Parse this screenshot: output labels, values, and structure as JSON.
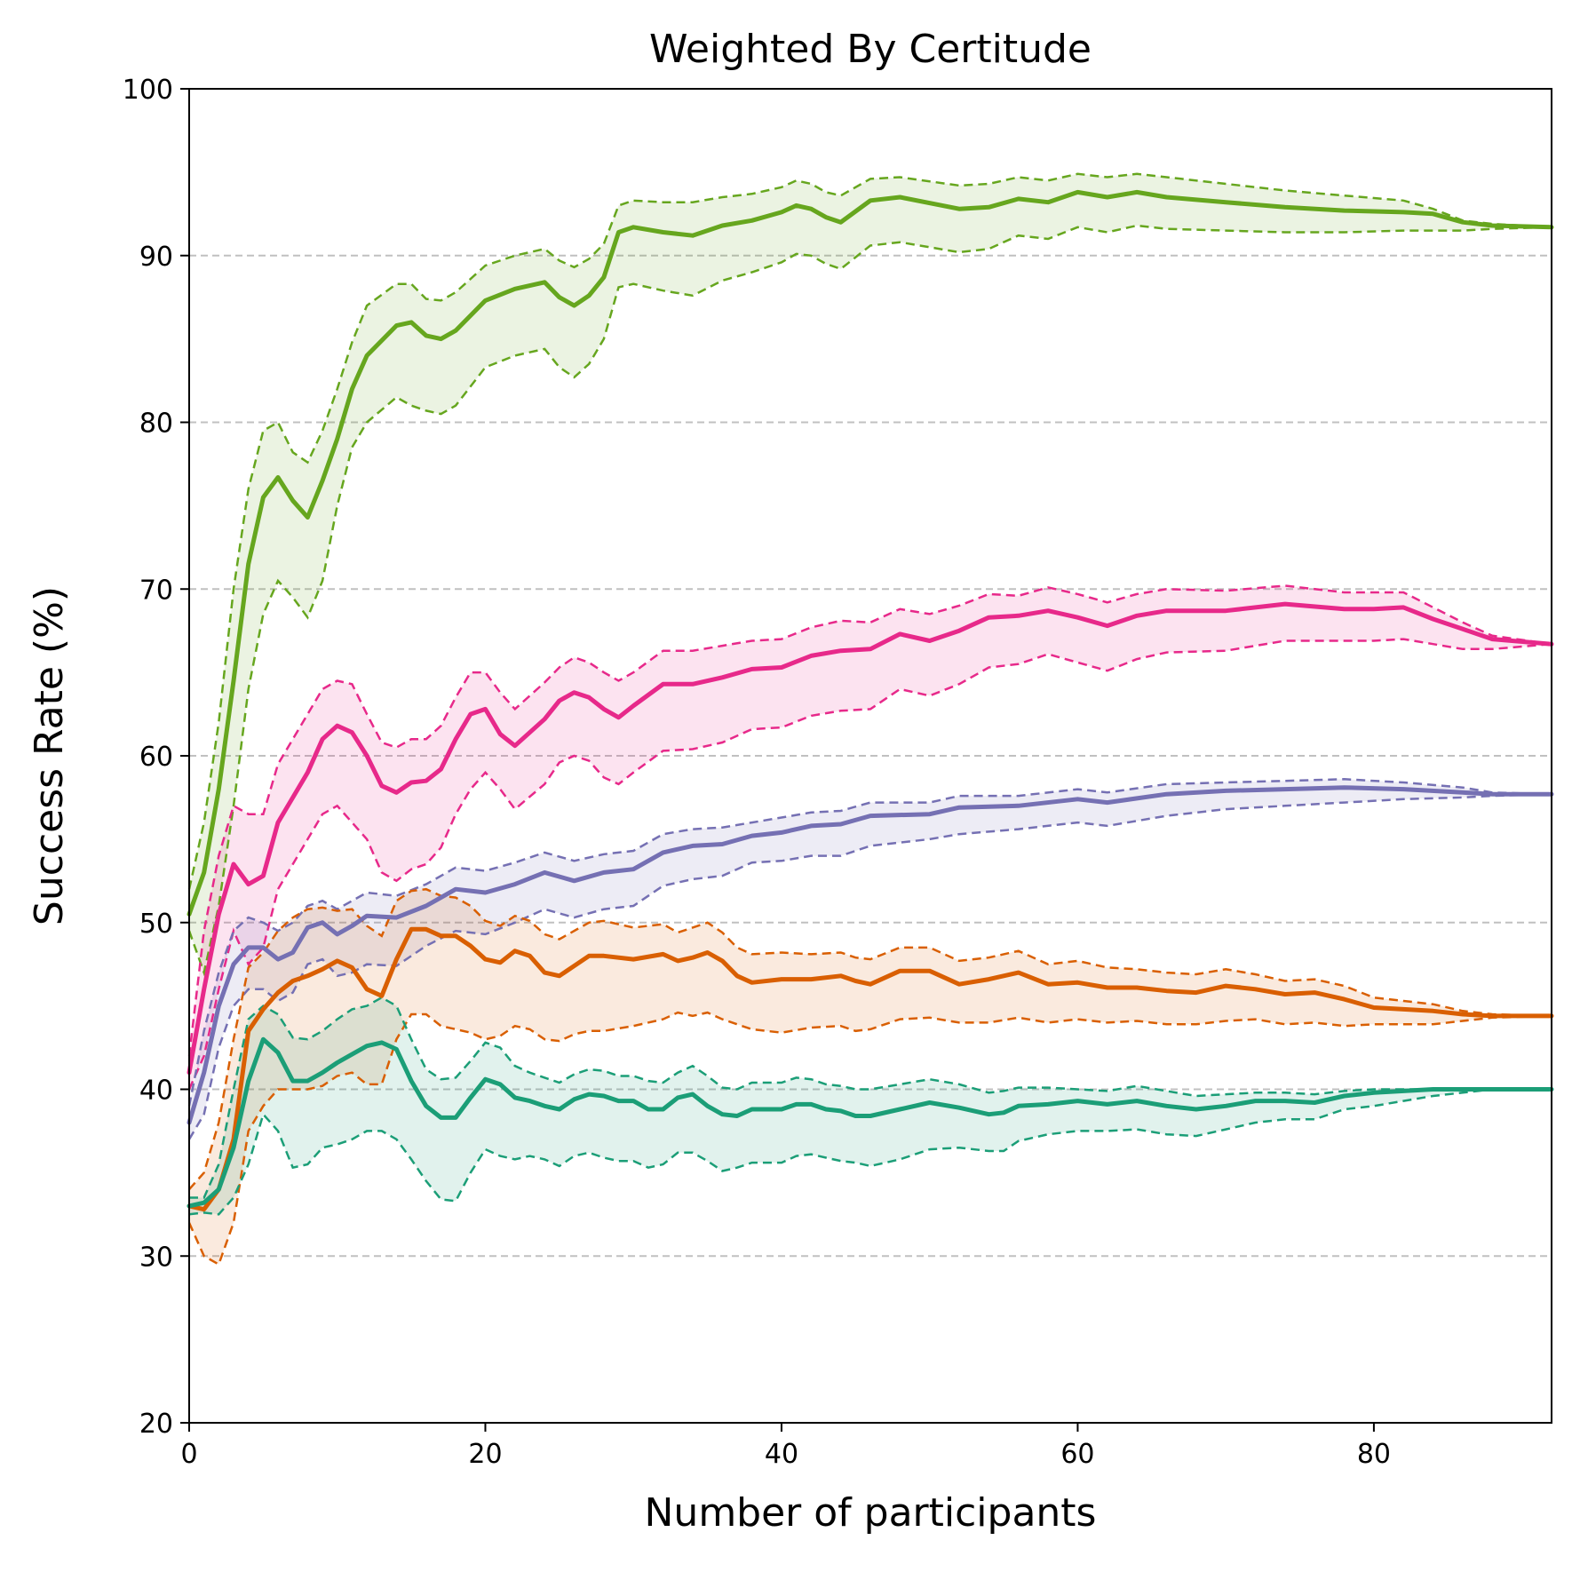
{
  "chart_data": {
    "type": "line",
    "title": "Weighted By Certitude",
    "xlabel": "Number of participants",
    "ylabel": "Success Rate (%)",
    "xlim": [
      0,
      92
    ],
    "ylim": [
      20,
      100
    ],
    "xticks": [
      0,
      20,
      40,
      60,
      80
    ],
    "yticks": [
      20,
      30,
      40,
      50,
      60,
      70,
      80,
      90,
      100
    ],
    "grid": "horizontal-dashed",
    "legend": "none",
    "band_opacity": 0.13,
    "series": [
      {
        "color": "#66a61e",
        "x": [
          0,
          1,
          2,
          3,
          4,
          5,
          6,
          7,
          8,
          9,
          10,
          11,
          12,
          14,
          15,
          16,
          17,
          18,
          20,
          22,
          24,
          25,
          26,
          27,
          28,
          29,
          30,
          32,
          34,
          36,
          38,
          40,
          41,
          42,
          43,
          44,
          46,
          48,
          52,
          54,
          56,
          58,
          60,
          62,
          64,
          66,
          70,
          74,
          78,
          82,
          84,
          86,
          88,
          92
        ],
        "y": [
          50.5,
          53.0,
          58.0,
          64.5,
          71.5,
          75.5,
          76.7,
          75.3,
          74.3,
          76.5,
          79.0,
          82.0,
          84.0,
          85.8,
          86.0,
          85.2,
          85.0,
          85.5,
          87.3,
          88.0,
          88.4,
          87.5,
          87.0,
          87.6,
          88.7,
          91.4,
          91.7,
          91.4,
          91.2,
          91.8,
          92.1,
          92.6,
          93.0,
          92.8,
          92.3,
          92.0,
          93.3,
          93.5,
          92.8,
          92.9,
          93.4,
          93.2,
          93.8,
          93.5,
          93.8,
          93.5,
          93.2,
          92.9,
          92.7,
          92.6,
          92.5,
          92.0,
          91.8,
          91.7
        ],
        "upper": [
          52.0,
          56.0,
          62.0,
          70.0,
          76.0,
          79.5,
          80.0,
          78.2,
          77.6,
          79.5,
          82.0,
          84.8,
          87.0,
          88.3,
          88.3,
          87.4,
          87.3,
          87.8,
          89.4,
          90.0,
          90.4,
          89.7,
          89.3,
          89.8,
          90.7,
          93.0,
          93.3,
          93.2,
          93.2,
          93.5,
          93.7,
          94.1,
          94.5,
          94.3,
          93.8,
          93.6,
          94.6,
          94.7,
          94.2,
          94.3,
          94.7,
          94.5,
          94.9,
          94.7,
          94.9,
          94.7,
          94.3,
          93.9,
          93.6,
          93.3,
          92.8,
          92.1,
          91.9,
          91.7
        ],
        "lower": [
          49.5,
          47.0,
          51.0,
          57.0,
          64.0,
          68.5,
          70.5,
          69.5,
          68.3,
          70.5,
          75.0,
          78.5,
          80.0,
          81.5,
          81.0,
          80.7,
          80.5,
          81.0,
          83.3,
          84.0,
          84.4,
          83.3,
          82.7,
          83.5,
          85.0,
          88.1,
          88.3,
          87.9,
          87.6,
          88.5,
          89.0,
          89.6,
          90.1,
          90.0,
          89.5,
          89.2,
          90.6,
          90.8,
          90.2,
          90.4,
          91.2,
          91.0,
          91.7,
          91.4,
          91.8,
          91.6,
          91.5,
          91.4,
          91.4,
          91.5,
          91.5,
          91.5,
          91.6,
          91.7
        ]
      },
      {
        "color": "#e7298a",
        "x": [
          0,
          1,
          2,
          3,
          4,
          5,
          6,
          8,
          9,
          10,
          11,
          12,
          13,
          14,
          15,
          16,
          17,
          18,
          19,
          20,
          21,
          22,
          24,
          25,
          26,
          27,
          28,
          29,
          30,
          32,
          34,
          36,
          38,
          40,
          42,
          44,
          46,
          48,
          50,
          52,
          54,
          56,
          58,
          60,
          62,
          64,
          66,
          70,
          74,
          78,
          80,
          82,
          84,
          86,
          88,
          92
        ],
        "y": [
          41.0,
          46.0,
          50.5,
          53.5,
          52.3,
          52.8,
          56.0,
          59.0,
          61.0,
          61.8,
          61.4,
          60.0,
          58.2,
          57.8,
          58.4,
          58.5,
          59.2,
          61.0,
          62.5,
          62.8,
          61.3,
          60.6,
          62.2,
          63.3,
          63.8,
          63.5,
          62.8,
          62.3,
          63.0,
          64.3,
          64.3,
          64.7,
          65.2,
          65.3,
          66.0,
          66.3,
          66.4,
          67.3,
          66.9,
          67.5,
          68.3,
          68.4,
          68.7,
          68.3,
          67.8,
          68.4,
          68.7,
          68.7,
          69.1,
          68.8,
          68.8,
          68.9,
          68.2,
          67.6,
          67.0,
          66.7
        ],
        "upper": [
          42.0,
          49.5,
          54.0,
          57.0,
          56.5,
          56.5,
          59.5,
          62.5,
          64.0,
          64.5,
          64.3,
          62.5,
          60.8,
          60.5,
          61.0,
          61.0,
          61.8,
          63.5,
          65.0,
          65.0,
          63.8,
          62.8,
          64.4,
          65.3,
          65.9,
          65.6,
          65.0,
          64.5,
          65.0,
          66.3,
          66.3,
          66.6,
          66.9,
          67.0,
          67.7,
          68.1,
          68.0,
          68.8,
          68.5,
          69.0,
          69.7,
          69.6,
          70.1,
          69.7,
          69.2,
          69.7,
          70.0,
          69.9,
          70.2,
          69.8,
          69.8,
          69.8,
          68.9,
          68.0,
          67.2,
          66.7
        ],
        "lower": [
          40.0,
          42.0,
          46.0,
          49.5,
          47.5,
          48.5,
          52.0,
          55.0,
          56.5,
          57.0,
          56.0,
          55.0,
          53.0,
          52.5,
          53.2,
          53.5,
          54.5,
          56.5,
          58.0,
          59.0,
          58.0,
          56.8,
          58.3,
          59.6,
          60.0,
          59.7,
          58.7,
          58.3,
          59.0,
          60.3,
          60.4,
          60.8,
          61.6,
          61.7,
          62.4,
          62.7,
          62.8,
          64.0,
          63.6,
          64.3,
          65.3,
          65.5,
          66.1,
          65.6,
          65.1,
          65.8,
          66.2,
          66.3,
          66.9,
          66.9,
          66.9,
          67.0,
          66.7,
          66.4,
          66.4,
          66.7
        ]
      },
      {
        "color": "#7570b3",
        "x": [
          0,
          1,
          2,
          3,
          4,
          5,
          6,
          7,
          8,
          9,
          10,
          11,
          12,
          14,
          16,
          18,
          20,
          22,
          24,
          26,
          28,
          30,
          32,
          34,
          36,
          38,
          40,
          42,
          44,
          46,
          50,
          52,
          56,
          60,
          62,
          66,
          70,
          74,
          78,
          82,
          86,
          88,
          92
        ],
        "y": [
          38.0,
          41.0,
          45.0,
          47.5,
          48.5,
          48.5,
          47.8,
          48.2,
          49.7,
          50.0,
          49.3,
          49.8,
          50.4,
          50.3,
          51.0,
          52.0,
          51.8,
          52.3,
          53.0,
          52.5,
          53.0,
          53.2,
          54.2,
          54.6,
          54.7,
          55.2,
          55.4,
          55.8,
          55.9,
          56.4,
          56.5,
          56.9,
          57.0,
          57.4,
          57.2,
          57.7,
          57.9,
          58.0,
          58.1,
          58.0,
          57.8,
          57.7,
          57.7
        ],
        "upper": [
          39.0,
          43.5,
          47.0,
          49.5,
          50.3,
          50.0,
          49.5,
          50.0,
          51.0,
          51.3,
          50.8,
          51.3,
          51.8,
          51.6,
          52.3,
          53.3,
          53.1,
          53.6,
          54.2,
          53.7,
          54.1,
          54.3,
          55.3,
          55.6,
          55.7,
          56.0,
          56.3,
          56.6,
          56.7,
          57.2,
          57.2,
          57.6,
          57.6,
          58.0,
          57.8,
          58.3,
          58.4,
          58.5,
          58.6,
          58.4,
          58.1,
          57.8,
          57.7
        ],
        "lower": [
          37.0,
          38.5,
          42.5,
          45.0,
          46.0,
          46.0,
          45.3,
          45.8,
          47.5,
          47.8,
          46.8,
          47.0,
          47.5,
          47.4,
          48.6,
          49.5,
          49.3,
          50.0,
          50.8,
          50.3,
          50.8,
          51.0,
          52.2,
          52.6,
          52.8,
          53.6,
          53.7,
          54.0,
          54.0,
          54.6,
          55.0,
          55.3,
          55.6,
          56.0,
          55.8,
          56.4,
          56.8,
          57.0,
          57.2,
          57.4,
          57.5,
          57.6,
          57.7
        ]
      },
      {
        "color": "#d95f02",
        "x": [
          0,
          1,
          2,
          3,
          4,
          5,
          6,
          7,
          8,
          9,
          10,
          11,
          12,
          13,
          14,
          15,
          16,
          17,
          18,
          19,
          20,
          21,
          22,
          23,
          24,
          25,
          26,
          27,
          28,
          30,
          32,
          33,
          34,
          35,
          36,
          37,
          38,
          40,
          42,
          44,
          45,
          46,
          48,
          50,
          52,
          54,
          56,
          58,
          60,
          62,
          64,
          66,
          68,
          70,
          72,
          74,
          76,
          78,
          80,
          82,
          84,
          86,
          88,
          92
        ],
        "y": [
          33.0,
          32.8,
          34.0,
          37.0,
          43.5,
          44.8,
          45.8,
          46.5,
          46.8,
          47.2,
          47.7,
          47.3,
          46.0,
          45.6,
          47.8,
          49.6,
          49.6,
          49.2,
          49.2,
          48.6,
          47.8,
          47.6,
          48.3,
          48.0,
          47.0,
          46.8,
          47.4,
          48.0,
          48.0,
          47.8,
          48.1,
          47.7,
          47.9,
          48.2,
          47.7,
          46.8,
          46.4,
          46.6,
          46.6,
          46.8,
          46.5,
          46.3,
          47.1,
          47.1,
          46.3,
          46.6,
          47.0,
          46.3,
          46.4,
          46.1,
          46.1,
          45.9,
          45.8,
          46.2,
          46.0,
          45.7,
          45.8,
          45.4,
          44.9,
          44.8,
          44.7,
          44.5,
          44.4,
          44.4
        ],
        "upper": [
          34.0,
          35.0,
          38.0,
          43.0,
          47.3,
          48.2,
          49.5,
          50.3,
          50.8,
          50.9,
          50.7,
          50.8,
          49.8,
          49.2,
          51.3,
          51.9,
          52.0,
          51.6,
          51.5,
          51.0,
          50.1,
          49.8,
          50.4,
          50.1,
          49.3,
          49.0,
          49.5,
          50.0,
          50.1,
          49.7,
          49.9,
          49.4,
          49.7,
          50.0,
          49.4,
          48.5,
          48.1,
          48.2,
          48.1,
          48.2,
          47.9,
          47.8,
          48.5,
          48.5,
          47.7,
          47.9,
          48.3,
          47.5,
          47.7,
          47.3,
          47.2,
          47.0,
          46.9,
          47.2,
          46.9,
          46.5,
          46.6,
          46.2,
          45.5,
          45.3,
          45.1,
          44.7,
          44.5,
          44.4
        ],
        "lower": [
          32.0,
          30.0,
          29.5,
          32.0,
          37.5,
          39.0,
          40.0,
          40.0,
          40.0,
          40.2,
          40.8,
          41.0,
          40.3,
          40.3,
          43.0,
          44.5,
          44.5,
          43.8,
          43.6,
          43.4,
          43.0,
          43.2,
          43.8,
          43.6,
          43.0,
          42.9,
          43.3,
          43.5,
          43.5,
          43.8,
          44.2,
          44.6,
          44.4,
          44.6,
          44.2,
          43.9,
          43.6,
          43.4,
          43.7,
          43.8,
          43.5,
          43.6,
          44.2,
          44.3,
          44.0,
          44.0,
          44.3,
          44.0,
          44.2,
          44.0,
          44.1,
          43.9,
          43.9,
          44.1,
          44.2,
          43.9,
          44.0,
          43.8,
          43.9,
          43.9,
          43.9,
          44.1,
          44.3,
          44.4
        ]
      },
      {
        "color": "#1b9e77",
        "x": [
          0,
          1,
          2,
          3,
          4,
          5,
          6,
          7,
          8,
          9,
          10,
          11,
          12,
          13,
          14,
          15,
          16,
          17,
          18,
          19,
          20,
          21,
          22,
          23,
          24,
          25,
          26,
          27,
          28,
          29,
          30,
          31,
          32,
          33,
          34,
          35,
          36,
          37,
          38,
          40,
          41,
          42,
          43,
          44,
          45,
          46,
          48,
          50,
          52,
          54,
          55,
          56,
          58,
          60,
          62,
          64,
          66,
          68,
          70,
          72,
          74,
          76,
          78,
          80,
          82,
          84,
          86,
          88,
          92
        ],
        "y": [
          33.0,
          33.2,
          34.0,
          36.5,
          40.5,
          43.0,
          42.2,
          40.5,
          40.5,
          41.0,
          41.6,
          42.1,
          42.6,
          42.8,
          42.4,
          40.5,
          39.0,
          38.3,
          38.3,
          39.5,
          40.6,
          40.3,
          39.5,
          39.3,
          39.0,
          38.8,
          39.4,
          39.7,
          39.6,
          39.3,
          39.3,
          38.8,
          38.8,
          39.5,
          39.7,
          39.0,
          38.5,
          38.4,
          38.8,
          38.8,
          39.1,
          39.1,
          38.8,
          38.7,
          38.4,
          38.4,
          38.8,
          39.2,
          38.9,
          38.5,
          38.6,
          39.0,
          39.1,
          39.3,
          39.1,
          39.3,
          39.0,
          38.8,
          39.0,
          39.3,
          39.3,
          39.2,
          39.6,
          39.8,
          39.9,
          40.0,
          40.0,
          40.0,
          40.0
        ],
        "upper": [
          33.5,
          33.5,
          35.5,
          40.0,
          44.2,
          45.0,
          44.5,
          43.1,
          43.0,
          43.5,
          44.2,
          44.8,
          45.0,
          45.5,
          45.0,
          43.0,
          41.2,
          40.6,
          40.7,
          41.7,
          42.8,
          42.5,
          41.4,
          41.0,
          40.7,
          40.4,
          40.9,
          41.2,
          41.1,
          40.8,
          40.8,
          40.5,
          40.4,
          41.0,
          41.4,
          40.8,
          40.1,
          40.0,
          40.4,
          40.4,
          40.7,
          40.6,
          40.3,
          40.2,
          40.0,
          40.0,
          40.3,
          40.6,
          40.3,
          39.8,
          39.9,
          40.1,
          40.1,
          40.0,
          39.9,
          40.2,
          39.9,
          39.6,
          39.7,
          39.8,
          39.8,
          39.7,
          39.9,
          40.0,
          40.0,
          40.0,
          40.0,
          40.0,
          40.0
        ],
        "lower": [
          32.5,
          32.6,
          32.5,
          33.5,
          35.5,
          38.5,
          37.5,
          35.3,
          35.5,
          36.5,
          36.7,
          37.0,
          37.5,
          37.5,
          37.0,
          35.8,
          34.5,
          33.4,
          33.3,
          35.0,
          36.4,
          36.0,
          35.8,
          36.0,
          35.8,
          35.4,
          36.0,
          36.2,
          35.9,
          35.7,
          35.7,
          35.3,
          35.5,
          36.2,
          36.2,
          35.7,
          35.1,
          35.3,
          35.6,
          35.6,
          36.0,
          36.1,
          35.9,
          35.7,
          35.6,
          35.4,
          35.8,
          36.4,
          36.5,
          36.3,
          36.3,
          36.9,
          37.3,
          37.5,
          37.5,
          37.6,
          37.3,
          37.2,
          37.6,
          38.0,
          38.2,
          38.2,
          38.8,
          39.0,
          39.3,
          39.6,
          39.8,
          40.0,
          40.0
        ]
      }
    ]
  }
}
